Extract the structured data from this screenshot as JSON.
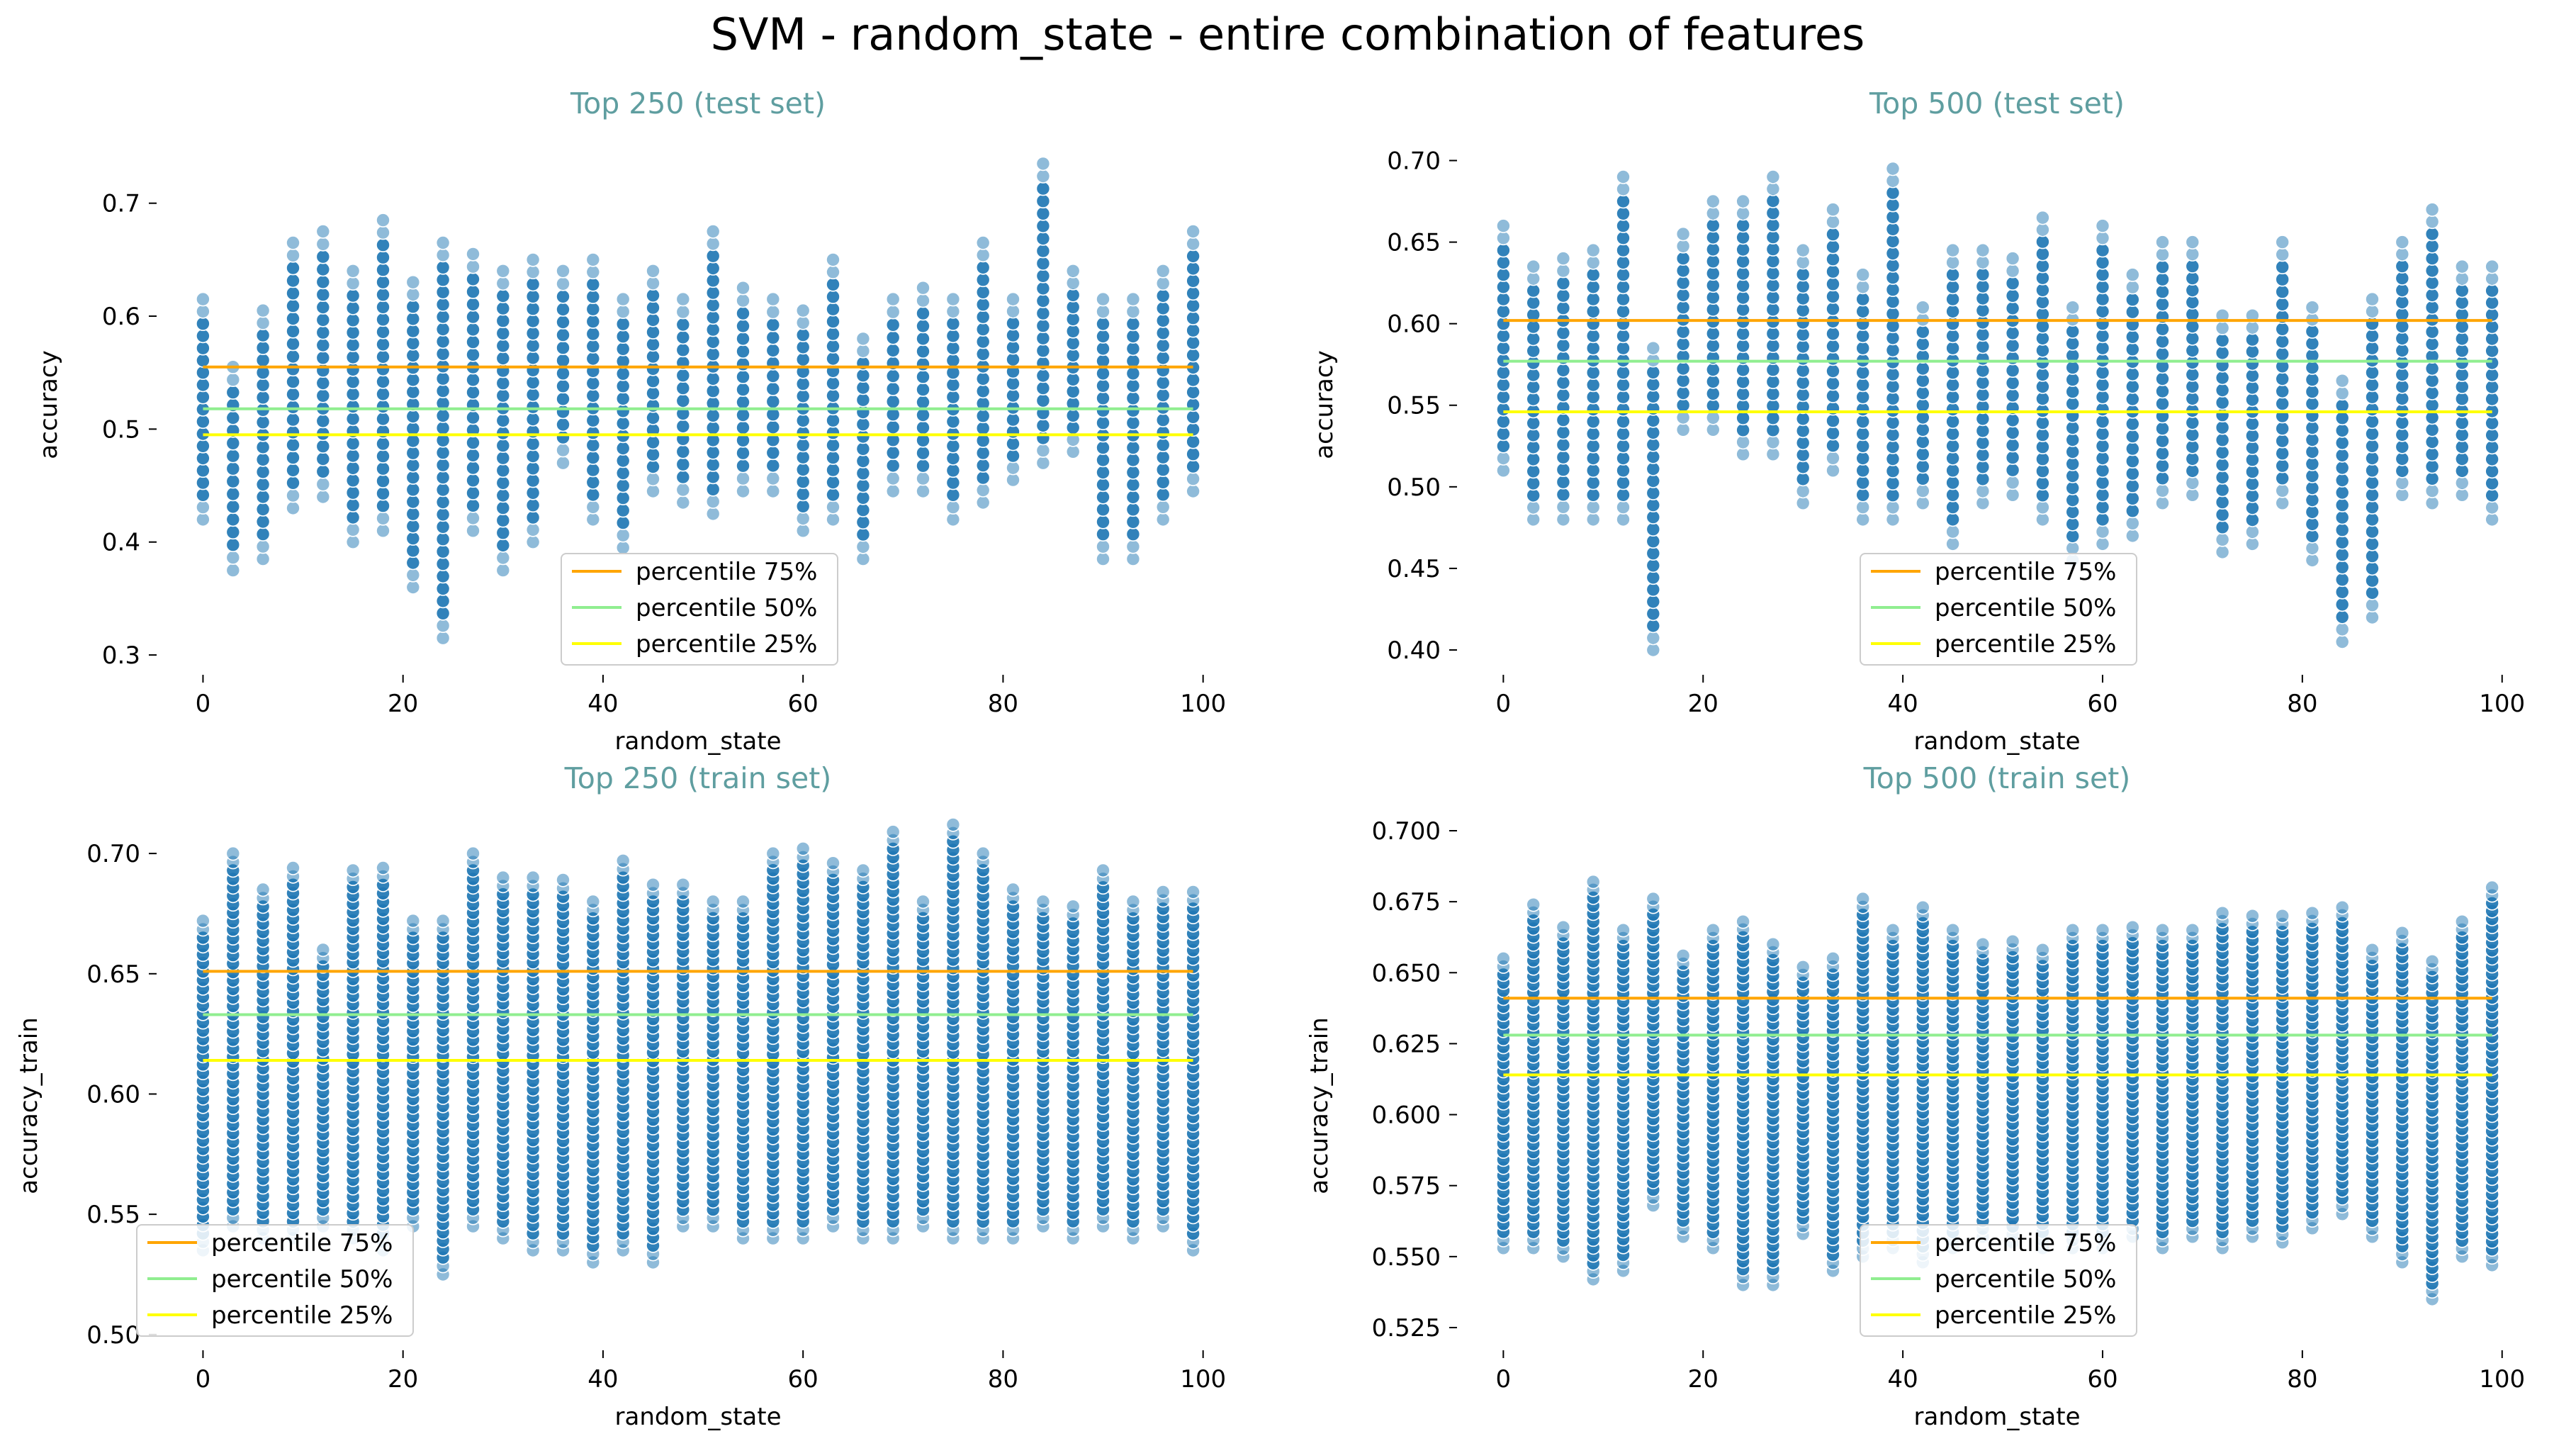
{
  "figure": {
    "suptitle": "SVM - random_state - entire combination of features"
  },
  "colors": {
    "points": "#1f77b4",
    "p75": "#ffa500",
    "p50": "#90ee90",
    "p25": "#ffff00",
    "subtitle": "#5f9ea0"
  },
  "chart_data": [
    {
      "type": "scatter",
      "title": "Top 250 (test set)",
      "xlabel": "random_state",
      "ylabel": "accuracy",
      "xlim": [
        -4,
        103
      ],
      "ylim": [
        0.29,
        0.745
      ],
      "xticks": [
        0,
        20,
        40,
        60,
        80,
        100
      ],
      "yticks": [
        0.3,
        0.4,
        0.5,
        0.6,
        0.7
      ],
      "ytick_labels": [
        "0.3",
        "0.4",
        "0.5",
        "0.6",
        "0.7"
      ],
      "grid": false,
      "legend": {
        "placement": "lower center",
        "entries": [
          "percentile 75%",
          "percentile 50%",
          "percentile 25%"
        ]
      },
      "percentiles": {
        "p75": 0.555,
        "p50": 0.518,
        "p25": 0.495
      },
      "x": [
        0,
        3,
        6,
        9,
        12,
        15,
        18,
        21,
        24,
        27,
        30,
        33,
        36,
        39,
        42,
        45,
        48,
        51,
        54,
        57,
        60,
        63,
        66,
        69,
        72,
        75,
        78,
        81,
        84,
        87,
        90,
        93,
        96,
        99
      ],
      "ymin": [
        0.42,
        0.375,
        0.385,
        0.43,
        0.44,
        0.4,
        0.41,
        0.36,
        0.315,
        0.41,
        0.375,
        0.4,
        0.47,
        0.42,
        0.395,
        0.445,
        0.435,
        0.425,
        0.445,
        0.445,
        0.41,
        0.42,
        0.385,
        0.445,
        0.445,
        0.42,
        0.435,
        0.455,
        0.47,
        0.48,
        0.385,
        0.385,
        0.42,
        0.445
      ],
      "ymax": [
        0.615,
        0.555,
        0.605,
        0.665,
        0.675,
        0.64,
        0.685,
        0.63,
        0.665,
        0.655,
        0.64,
        0.65,
        0.64,
        0.65,
        0.615,
        0.64,
        0.615,
        0.675,
        0.625,
        0.615,
        0.605,
        0.65,
        0.58,
        0.615,
        0.625,
        0.615,
        0.665,
        0.615,
        0.735,
        0.64,
        0.615,
        0.615,
        0.64,
        0.675
      ],
      "step": 0.011
    },
    {
      "type": "scatter",
      "title": "Top 500 (test set)",
      "xlabel": "random_state",
      "ylabel": "accuracy",
      "xlim": [
        -4,
        103
      ],
      "ylim": [
        0.39,
        0.705
      ],
      "xticks": [
        0,
        20,
        40,
        60,
        80,
        100
      ],
      "yticks": [
        0.4,
        0.45,
        0.5,
        0.55,
        0.6,
        0.65,
        0.7
      ],
      "ytick_labels": [
        "0.40",
        "0.45",
        "0.50",
        "0.55",
        "0.60",
        "0.65",
        "0.70"
      ],
      "grid": false,
      "legend": {
        "placement": "lower center",
        "entries": [
          "percentile 75%",
          "percentile 50%",
          "percentile 25%"
        ]
      },
      "percentiles": {
        "p75": 0.602,
        "p50": 0.577,
        "p25": 0.546
      },
      "x": [
        0,
        3,
        6,
        9,
        12,
        15,
        18,
        21,
        24,
        27,
        30,
        33,
        36,
        39,
        42,
        45,
        48,
        51,
        54,
        57,
        60,
        63,
        66,
        69,
        72,
        75,
        78,
        81,
        84,
        87,
        90,
        93,
        96,
        99
      ],
      "ymin": [
        0.51,
        0.48,
        0.48,
        0.48,
        0.48,
        0.4,
        0.535,
        0.535,
        0.52,
        0.52,
        0.49,
        0.51,
        0.48,
        0.48,
        0.49,
        0.465,
        0.49,
        0.495,
        0.48,
        0.455,
        0.465,
        0.47,
        0.49,
        0.495,
        0.46,
        0.465,
        0.49,
        0.455,
        0.405,
        0.42,
        0.495,
        0.49,
        0.495,
        0.48
      ],
      "ymax": [
        0.66,
        0.635,
        0.64,
        0.645,
        0.69,
        0.585,
        0.655,
        0.675,
        0.675,
        0.69,
        0.645,
        0.67,
        0.63,
        0.695,
        0.61,
        0.645,
        0.645,
        0.64,
        0.665,
        0.61,
        0.66,
        0.63,
        0.65,
        0.65,
        0.605,
        0.605,
        0.65,
        0.61,
        0.565,
        0.615,
        0.65,
        0.67,
        0.635,
        0.635
      ],
      "step": 0.0075
    },
    {
      "type": "scatter",
      "title": "Top 250 (train set)",
      "xlabel": "random_state",
      "ylabel": "accuracy_train",
      "xlim": [
        -4,
        103
      ],
      "ylim": [
        0.497,
        0.713
      ],
      "xticks": [
        0,
        20,
        40,
        60,
        80,
        100
      ],
      "yticks": [
        0.5,
        0.55,
        0.6,
        0.65,
        0.7
      ],
      "ytick_labels": [
        "0.50",
        "0.55",
        "0.60",
        "0.65",
        "0.70"
      ],
      "grid": false,
      "legend": {
        "placement": "lower left",
        "entries": [
          "percentile 75%",
          "percentile 50%",
          "percentile 25%"
        ]
      },
      "percentiles": {
        "p75": 0.651,
        "p50": 0.633,
        "p25": 0.614
      },
      "x": [
        0,
        3,
        6,
        9,
        12,
        15,
        18,
        21,
        24,
        27,
        30,
        33,
        36,
        39,
        42,
        45,
        48,
        51,
        54,
        57,
        60,
        63,
        66,
        69,
        72,
        75,
        78,
        81,
        84,
        87,
        90,
        93,
        96,
        99
      ],
      "ymin": [
        0.535,
        0.545,
        0.54,
        0.54,
        0.545,
        0.54,
        0.535,
        0.545,
        0.525,
        0.545,
        0.54,
        0.535,
        0.535,
        0.53,
        0.535,
        0.53,
        0.545,
        0.545,
        0.54,
        0.54,
        0.54,
        0.545,
        0.54,
        0.54,
        0.545,
        0.54,
        0.54,
        0.54,
        0.545,
        0.54,
        0.545,
        0.54,
        0.545,
        0.535
      ],
      "ymax": [
        0.672,
        0.7,
        0.685,
        0.694,
        0.66,
        0.693,
        0.694,
        0.672,
        0.672,
        0.7,
        0.69,
        0.69,
        0.689,
        0.68,
        0.697,
        0.687,
        0.687,
        0.68,
        0.68,
        0.7,
        0.702,
        0.696,
        0.693,
        0.709,
        0.68,
        0.712,
        0.7,
        0.685,
        0.68,
        0.678,
        0.693,
        0.68,
        0.684,
        0.684
      ],
      "step": 0.0035
    },
    {
      "type": "scatter",
      "title": "Top 500 (train set)",
      "xlabel": "random_state",
      "ylabel": "accuracy_train",
      "xlim": [
        -4,
        103
      ],
      "ylim": [
        0.52,
        0.703
      ],
      "xticks": [
        0,
        20,
        40,
        60,
        80,
        100
      ],
      "yticks": [
        0.525,
        0.55,
        0.575,
        0.6,
        0.625,
        0.65,
        0.675,
        0.7
      ],
      "ytick_labels": [
        "0.525",
        "0.550",
        "0.575",
        "0.600",
        "0.625",
        "0.650",
        "0.675",
        "0.700"
      ],
      "grid": false,
      "legend": {
        "placement": "lower center",
        "entries": [
          "percentile 75%",
          "percentile 50%",
          "percentile 25%"
        ]
      },
      "percentiles": {
        "p75": 0.641,
        "p50": 0.628,
        "p25": 0.614
      },
      "x": [
        0,
        3,
        6,
        9,
        12,
        15,
        18,
        21,
        24,
        27,
        30,
        33,
        36,
        39,
        42,
        45,
        48,
        51,
        54,
        57,
        60,
        63,
        66,
        69,
        72,
        75,
        78,
        81,
        84,
        87,
        90,
        93,
        96,
        99
      ],
      "ymin": [
        0.553,
        0.553,
        0.55,
        0.542,
        0.545,
        0.568,
        0.557,
        0.553,
        0.54,
        0.54,
        0.558,
        0.545,
        0.55,
        0.553,
        0.548,
        0.553,
        0.557,
        0.555,
        0.553,
        0.553,
        0.553,
        0.557,
        0.553,
        0.557,
        0.553,
        0.557,
        0.555,
        0.56,
        0.565,
        0.557,
        0.548,
        0.535,
        0.55,
        0.547
      ],
      "ymax": [
        0.655,
        0.674,
        0.666,
        0.682,
        0.665,
        0.676,
        0.656,
        0.665,
        0.668,
        0.66,
        0.652,
        0.655,
        0.676,
        0.665,
        0.673,
        0.665,
        0.66,
        0.661,
        0.658,
        0.665,
        0.665,
        0.666,
        0.665,
        0.665,
        0.671,
        0.67,
        0.67,
        0.671,
        0.673,
        0.658,
        0.664,
        0.654,
        0.668,
        0.68
      ],
      "step": 0.0028
    }
  ]
}
